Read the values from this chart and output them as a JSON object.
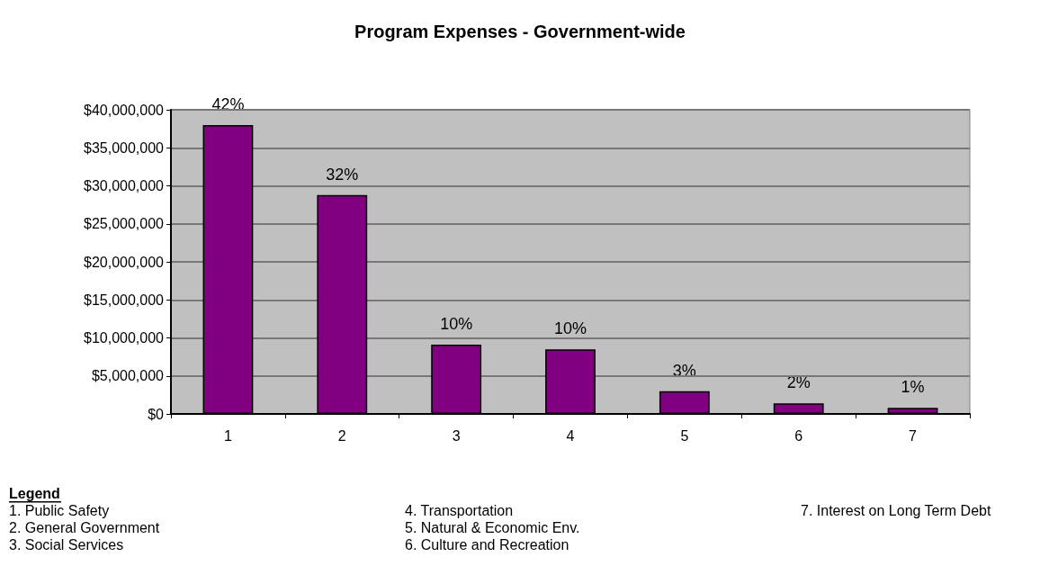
{
  "chart_data": {
    "type": "bar",
    "title": "Program Expenses - Government-wide",
    "categories": [
      "1",
      "2",
      "3",
      "4",
      "5",
      "6",
      "7"
    ],
    "values": [
      38000000,
      28800000,
      9100000,
      8500000,
      3000000,
      1400000,
      800000
    ],
    "color": "#800080",
    "ylim": [
      0,
      40000000
    ],
    "yticks": [
      {
        "value": 0,
        "label": "$0"
      },
      {
        "value": 5000000,
        "label": "$5,000,000"
      },
      {
        "value": 10000000,
        "label": "$10,000,000"
      },
      {
        "value": 15000000,
        "label": "$15,000,000"
      },
      {
        "value": 20000000,
        "label": "$20,000,000"
      },
      {
        "value": 25000000,
        "label": "$25,000,000"
      },
      {
        "value": 30000000,
        "label": "$30,000,000"
      },
      {
        "value": 35000000,
        "label": "$35,000,000"
      },
      {
        "value": 40000000,
        "label": "$40,000,000"
      }
    ],
    "grid": true,
    "annotations": [
      "Legend",
      "1. Public Safety",
      "2. General Government",
      "3. Social Services",
      "4. Transportation",
      "5. Natural & Economic Env.",
      "6. Culture and Recreation",
      "7. Interest on Long Term Debt",
      {
        "text": "42%",
        "x": "1",
        "y": 38000000
      },
      {
        "text": "32%",
        "x": "2",
        "y": 28800000
      },
      {
        "text": "10%",
        "x": "3",
        "y": 9100000
      },
      {
        "text": "10%",
        "x": "4",
        "y": 8500000
      },
      {
        "text": "3%",
        "x": "5",
        "y": 3000000
      },
      {
        "text": "2%",
        "x": "6",
        "y": 1400000
      },
      {
        "text": "1%",
        "x": "7",
        "y": 800000
      }
    ]
  }
}
